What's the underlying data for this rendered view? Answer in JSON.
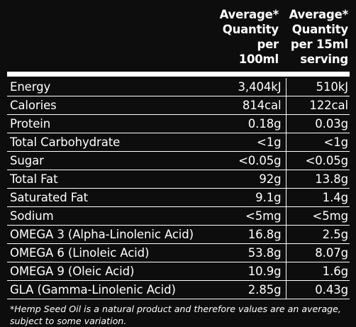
{
  "header": {
    "col1": [
      "Average*",
      "Quantity",
      "per",
      "100ml"
    ],
    "col2": [
      "Average*",
      "Quantity",
      "per 15ml",
      "serving"
    ]
  },
  "rows": [
    {
      "label": "Energy",
      "per100": "3,404kJ",
      "perServing": "510kJ"
    },
    {
      "label": "Calories",
      "per100": "814cal",
      "perServing": "122cal"
    },
    {
      "label": "Protein",
      "per100": "0.18g",
      "perServing": "0.03g"
    },
    {
      "label": "Total Carbohydrate",
      "per100": "<1g",
      "perServing": "<1g"
    },
    {
      "label": "Sugar",
      "per100": "<0.05g",
      "perServing": "<0.05g"
    },
    {
      "label": "Total Fat",
      "per100": "92g",
      "perServing": "13.8g"
    },
    {
      "label": "Saturated Fat",
      "per100": "9.1g",
      "perServing": "1.4g"
    },
    {
      "label": "Sodium",
      "per100": "<5mg",
      "perServing": "<5mg"
    },
    {
      "label": "OMEGA 3 (Alpha-Linolenic Acid)",
      "per100": "16.8g",
      "perServing": "2.5g"
    },
    {
      "label": "OMEGA 6 (Linoleic Acid)",
      "per100": "53.8g",
      "perServing": "8.07g"
    },
    {
      "label": "OMEGA 9 (Oleic Acid)",
      "per100": "10.9g",
      "perServing": "1.6g"
    },
    {
      "label": "GLA (Gamma-Linolenic Acid)",
      "per100": "2.85g",
      "perServing": "0.43g"
    }
  ],
  "footnote": "*Hemp Seed Oil is a natural product and therefore values are an average, subject to some variation.",
  "colors": {
    "background": "#0d0d0d",
    "text": "#ffffff"
  }
}
